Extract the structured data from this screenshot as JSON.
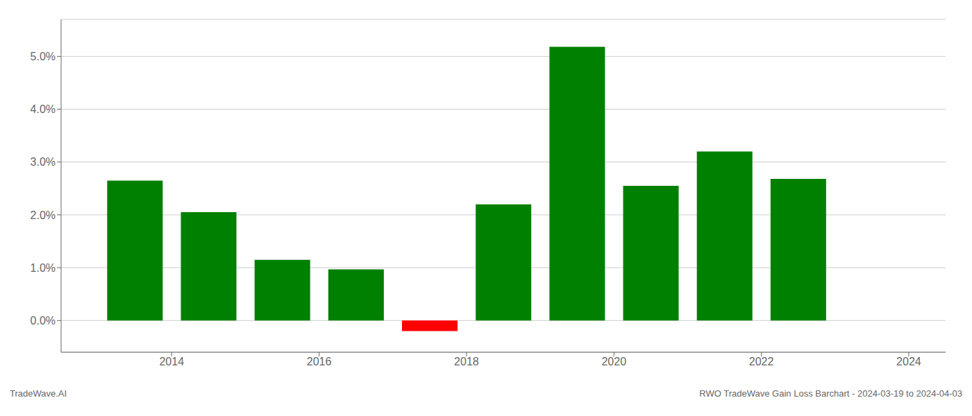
{
  "chart_data": {
    "type": "bar",
    "x": [
      2013.5,
      2014.5,
      2015.5,
      2016.5,
      2017.5,
      2018.5,
      2019.5,
      2020.5,
      2021.5,
      2022.5
    ],
    "values": [
      0.0265,
      0.0205,
      0.0115,
      0.0097,
      -0.002,
      0.022,
      0.0518,
      0.0255,
      0.032,
      0.0268
    ],
    "colors": [
      "#008000",
      "#008000",
      "#008000",
      "#008000",
      "#ff0000",
      "#008000",
      "#008000",
      "#008000",
      "#008000",
      "#008000"
    ],
    "xlim": [
      2012.5,
      2024.5
    ],
    "xticks": [
      2014,
      2016,
      2018,
      2020,
      2022,
      2024
    ],
    "ylim": [
      -0.006,
      0.057
    ],
    "yticks": [
      {
        "value": 0.0,
        "label": "0.0%"
      },
      {
        "value": 0.01,
        "label": "1.0%"
      },
      {
        "value": 0.02,
        "label": "2.0%"
      },
      {
        "value": 0.03,
        "label": "3.0%"
      },
      {
        "value": 0.04,
        "label": "4.0%"
      },
      {
        "value": 0.05,
        "label": "5.0%"
      }
    ],
    "grid": true,
    "annotations": [
      "TradeWave.AI",
      "RWO TradeWave Gain Loss Barchart - 2024-03-19 to 2024-04-03"
    ]
  }
}
